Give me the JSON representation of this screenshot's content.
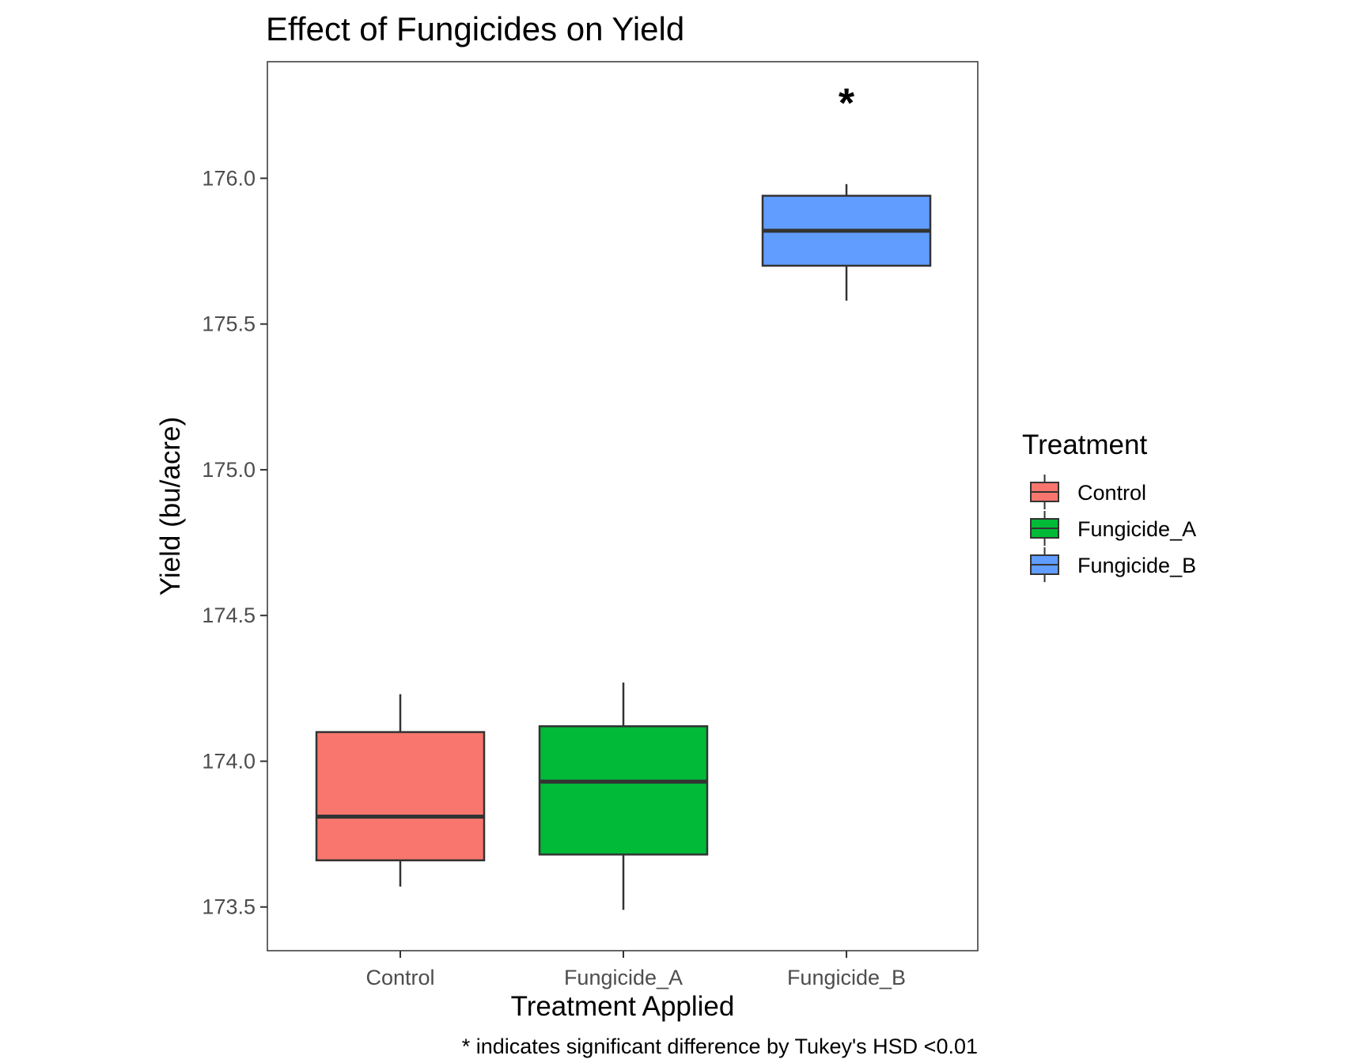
{
  "chart_data": {
    "type": "box",
    "title": "Effect of Fungicides on Yield",
    "xlabel": "Treatment Applied",
    "ylabel": "Yield (bu/acre)",
    "ylim": [
      173.35,
      176.4
    ],
    "y_ticks": [
      173.5,
      174.0,
      174.5,
      175.0,
      175.5,
      176.0
    ],
    "y_tick_labels": [
      "173.5",
      "174.0",
      "174.5",
      "175.0",
      "175.5",
      "176.0"
    ],
    "categories": [
      "Control",
      "Fungicide_A",
      "Fungicide_B"
    ],
    "series": [
      {
        "name": "Control",
        "color": "#F8766D",
        "min": 173.57,
        "q1": 173.66,
        "median": 173.81,
        "q3": 174.1,
        "max": 174.23
      },
      {
        "name": "Fungicide_A",
        "color": "#00BA38",
        "min": 173.49,
        "q1": 173.68,
        "median": 173.93,
        "q3": 174.12,
        "max": 174.27
      },
      {
        "name": "Fungicide_B",
        "color": "#619CFF",
        "min": 175.58,
        "q1": 175.7,
        "median": 175.82,
        "q3": 175.94,
        "max": 175.98
      }
    ],
    "annotations": [
      {
        "category": "Fungicide_B",
        "y": 176.28,
        "text": "*"
      }
    ],
    "legend": {
      "title": "Treatment",
      "position": "right",
      "entries": [
        "Control",
        "Fungicide_A",
        "Fungicide_B"
      ]
    },
    "caption": "* indicates significant difference by Tukey's HSD <0.01",
    "grid": false
  },
  "colors": {
    "outline": "#333333",
    "panel_border": "#333333",
    "background": "#ffffff"
  }
}
